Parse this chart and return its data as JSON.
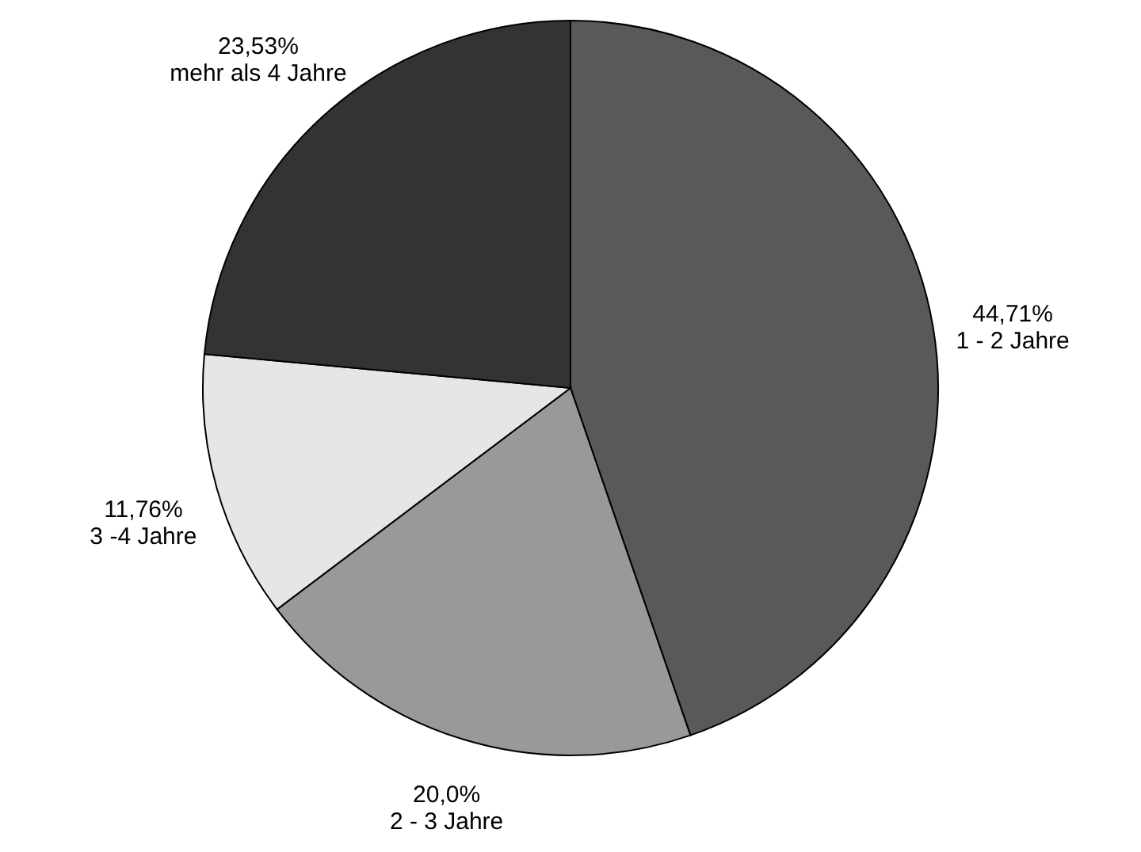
{
  "chart_data": {
    "type": "pie",
    "categories": [
      "1 - 2 Jahre",
      "2 - 3 Jahre",
      "3 -4 Jahre",
      "mehr als 4 Jahre"
    ],
    "values": [
      44.71,
      20.0,
      11.76,
      23.53
    ],
    "colors": [
      "#595959",
      "#999999",
      "#e6e6e6",
      "#333333"
    ],
    "value_labels": [
      "44,71%",
      "20,0%",
      "11,76%",
      "23,53%"
    ]
  }
}
